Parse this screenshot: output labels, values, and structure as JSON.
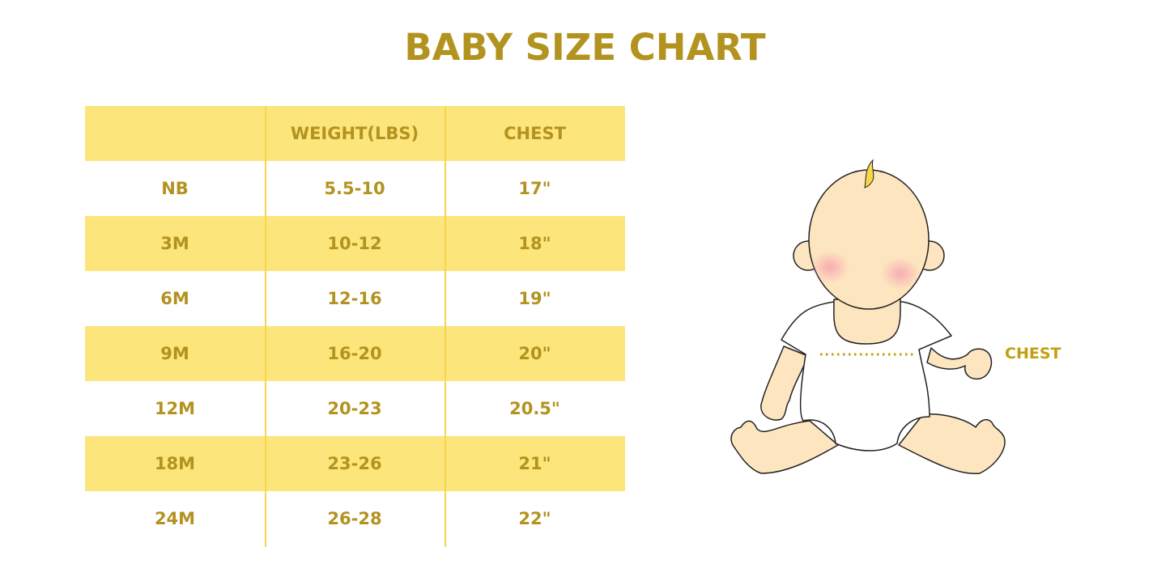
{
  "title": "BABY SIZE CHART",
  "table": {
    "headers": [
      "",
      "WEIGHT(LBS)",
      "CHEST"
    ],
    "rows": [
      [
        "NB",
        "5.5-10",
        "17\""
      ],
      [
        "3M",
        "10-12",
        "18\""
      ],
      [
        "6M",
        "12-16",
        "19\""
      ],
      [
        "9M",
        "16-20",
        "20\""
      ],
      [
        "12M",
        "20-23",
        "20.5\""
      ],
      [
        "18M",
        "23-26",
        "21\""
      ],
      [
        "24M",
        "26-28",
        "22\""
      ]
    ]
  },
  "illustration": {
    "chest_label": "CHEST"
  },
  "colors": {
    "text": "#b3931f",
    "band": "#fce57a",
    "skin": "#fde5bf",
    "hair": "#f7d64a"
  }
}
